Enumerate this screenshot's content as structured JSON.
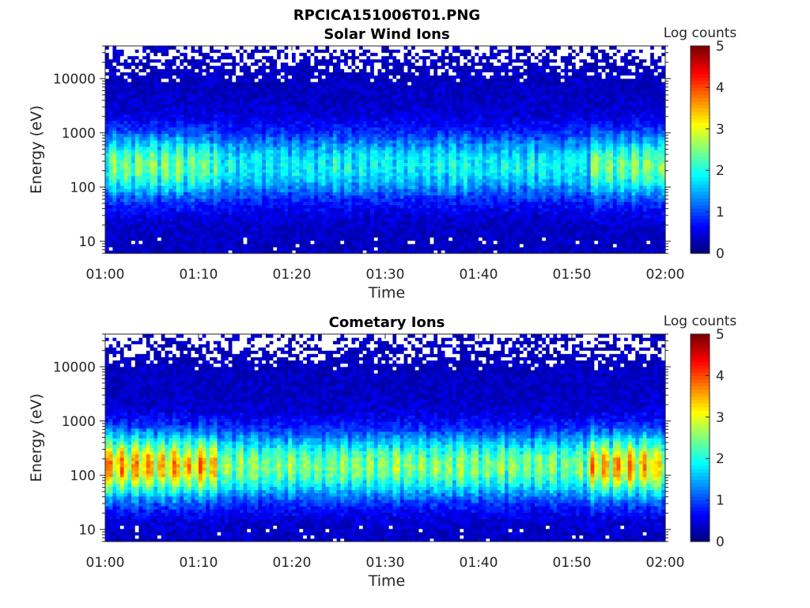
{
  "figure_title": "RPCICA151006T01.PNG",
  "chart_data": [
    {
      "type": "heatmap",
      "title": "Solar Wind Ions",
      "xlabel": "Time",
      "ylabel": "Energy (eV)",
      "x_ticks": [
        "01:00",
        "01:10",
        "01:20",
        "01:30",
        "01:40",
        "01:50",
        "02:00"
      ],
      "y_ticks": [
        "10",
        "100",
        "1000",
        "10000"
      ],
      "y_scale": "log",
      "xlim": [
        "01:00",
        "02:00"
      ],
      "ylim": [
        6,
        40000
      ],
      "colorbar": {
        "label": "Log counts",
        "range": [
          0,
          5
        ],
        "ticks": [
          "0",
          "1",
          "2",
          "3",
          "4",
          "5"
        ],
        "colormap": "jet"
      },
      "peak_energy_eV": 250,
      "typical_peak_log_counts": 2.0,
      "max_log_counts": 2.5,
      "enhanced_intervals": [
        "01:00-01:12",
        "01:52-02:00"
      ]
    },
    {
      "type": "heatmap",
      "title": "Cometary Ions",
      "xlabel": "Time",
      "ylabel": "Energy (eV)",
      "x_ticks": [
        "01:00",
        "01:10",
        "01:20",
        "01:30",
        "01:40",
        "01:50",
        "02:00"
      ],
      "y_ticks": [
        "10",
        "100",
        "1000",
        "10000"
      ],
      "y_scale": "log",
      "xlim": [
        "01:00",
        "02:00"
      ],
      "ylim": [
        6,
        40000
      ],
      "colorbar": {
        "label": "Log counts",
        "range": [
          0,
          5
        ],
        "ticks": [
          "0",
          "1",
          "2",
          "3",
          "4",
          "5"
        ],
        "colormap": "jet"
      },
      "peak_energy_eV": 150,
      "typical_peak_log_counts": 2.8,
      "max_log_counts": 3.8,
      "enhanced_intervals": [
        "01:00-01:12",
        "01:52-02:00"
      ]
    }
  ]
}
